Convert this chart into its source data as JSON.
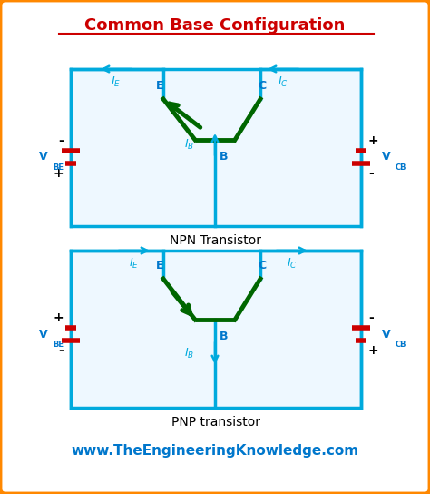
{
  "title": "Common Base Configuration",
  "title_color": "#cc0000",
  "background_color": "#ffffff",
  "outer_border_color": "#ff8800",
  "circuit_border_color": "#00aadd",
  "transistor_color": "#006600",
  "arrow_color": "#00aadd",
  "battery_color": "#cc0000",
  "text_color_blue": "#0077cc",
  "text_color_black": "#000000",
  "website": "www.TheEngineeringKnowledge.com",
  "npn_label": "NPN Transistor",
  "pnp_label": "PNP transistor"
}
